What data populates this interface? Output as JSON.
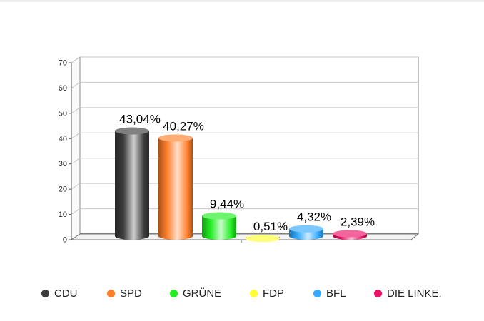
{
  "chart_data": {
    "type": "bar",
    "style": "3d-cylinder",
    "categories": [
      "CDU",
      "SPD",
      "GRÜNE",
      "FDP",
      "BFL",
      "DIE LINKE."
    ],
    "values": [
      43.04,
      40.27,
      9.44,
      0.51,
      4.32,
      2.39
    ],
    "data_labels": [
      "43,04%",
      "40,27%",
      "9,44%",
      "0,51%",
      "4,32%",
      "2,39%"
    ],
    "colors": [
      "#3c3c3c",
      "#ff7f2a",
      "#22ee22",
      "#ffff33",
      "#33aaff",
      "#ee1166"
    ],
    "ylim": [
      0,
      70
    ],
    "yticks": [
      "0",
      "10",
      "20",
      "30",
      "40",
      "50",
      "60",
      "70"
    ],
    "grid": true,
    "legend_position": "bottom",
    "title": "",
    "xlabel": "",
    "ylabel": ""
  }
}
